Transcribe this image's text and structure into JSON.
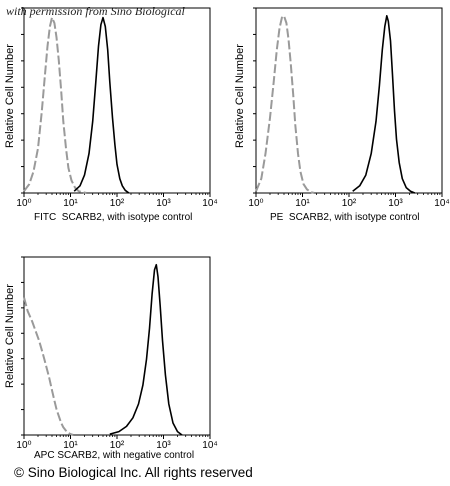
{
  "watermark": "with permission from Sino Biological",
  "footer": "© Sino Biological Inc. All rights reserved",
  "chart_data": [
    {
      "type": "line",
      "ylabel": "Relative Cell Number",
      "xcaption_marker": "FITC",
      "xcaption_text": "SCARB2,  with isotype control",
      "x_scale": "log",
      "xlim": [
        1,
        10000
      ],
      "xticks": [
        "10⁰",
        "10¹",
        "10²",
        "10³",
        "10⁴"
      ],
      "series": [
        {
          "style": "dashed",
          "color": "#9a9a9a",
          "x": [
            1,
            1.3,
            1.6,
            2.0,
            2.4,
            2.8,
            3.2,
            3.6,
            4.0,
            4.5,
            5.0,
            5.6,
            6.3,
            7.0,
            8.0,
            9.0,
            10.5,
            12.5,
            15,
            18,
            22
          ],
          "y": [
            0.01,
            0.05,
            0.12,
            0.25,
            0.45,
            0.65,
            0.82,
            0.93,
            0.98,
            0.95,
            0.87,
            0.74,
            0.57,
            0.4,
            0.25,
            0.14,
            0.07,
            0.03,
            0.01,
            0.005,
            0
          ]
        },
        {
          "style": "solid",
          "color": "#000000",
          "x": [
            12,
            16,
            20,
            25,
            30,
            35,
            40,
            45,
            50,
            56,
            63,
            70,
            80,
            90,
            100,
            115,
            130,
            150,
            180
          ],
          "y": [
            0.01,
            0.04,
            0.1,
            0.22,
            0.4,
            0.62,
            0.82,
            0.94,
            0.98,
            0.93,
            0.8,
            0.62,
            0.42,
            0.27,
            0.16,
            0.08,
            0.04,
            0.015,
            0
          ]
        }
      ]
    },
    {
      "type": "line",
      "ylabel": "Relative Cell Number",
      "xcaption_marker": "PE",
      "xcaption_text": "SCARB2,  with isotype control",
      "x_scale": "log",
      "xlim": [
        1,
        10000
      ],
      "xticks": [
        "10⁰",
        "10¹",
        "10²",
        "10³",
        "10⁴"
      ],
      "series": [
        {
          "style": "dashed",
          "color": "#9a9a9a",
          "x": [
            1,
            1.3,
            1.6,
            2.0,
            2.4,
            2.8,
            3.2,
            3.6,
            4.0,
            4.5,
            5.0,
            5.6,
            6.3,
            7.0,
            8.0,
            9.0,
            10.5,
            12.5,
            15,
            18
          ],
          "y": [
            0.01,
            0.08,
            0.22,
            0.42,
            0.62,
            0.8,
            0.92,
            0.98,
            0.99,
            0.95,
            0.86,
            0.72,
            0.55,
            0.38,
            0.22,
            0.12,
            0.05,
            0.02,
            0.005,
            0
          ]
        },
        {
          "style": "solid",
          "color": "#000000",
          "x": [
            120,
            170,
            230,
            300,
            380,
            450,
            520,
            590,
            650,
            700,
            780,
            860,
            950,
            1050,
            1200,
            1400,
            1700,
            2100,
            2600
          ],
          "y": [
            0.01,
            0.04,
            0.1,
            0.22,
            0.4,
            0.6,
            0.8,
            0.93,
            0.99,
            0.96,
            0.85,
            0.66,
            0.46,
            0.3,
            0.17,
            0.08,
            0.03,
            0.01,
            0
          ]
        }
      ]
    },
    {
      "type": "line",
      "ylabel": "Relative Cell Number",
      "xcaption_marker": "APC",
      "xcaption_text": "SCARB2, with negative control",
      "x_scale": "log",
      "xlim": [
        1,
        10000
      ],
      "xticks": [
        "10⁰",
        "10¹",
        "10²",
        "10³",
        "10⁴"
      ],
      "series": [
        {
          "style": "dashed",
          "color": "#9a9a9a",
          "x": [
            1,
            1.2,
            1.5,
            1.8,
            2.1,
            2.5,
            3.0,
            3.5,
            4.0,
            4.5,
            5.0,
            5.6,
            6.3,
            7.0,
            8.0,
            9.0,
            10,
            11.5
          ],
          "y": [
            0.8,
            0.72,
            0.66,
            0.6,
            0.55,
            0.48,
            0.4,
            0.33,
            0.26,
            0.2,
            0.15,
            0.11,
            0.07,
            0.045,
            0.025,
            0.012,
            0.005,
            0
          ]
        },
        {
          "style": "solid",
          "color": "#000000",
          "x": [
            70,
            110,
            160,
            220,
            290,
            360,
            430,
            500,
            570,
            640,
            700,
            760,
            850,
            950,
            1100,
            1300,
            1600,
            2000,
            2500
          ],
          "y": [
            0.005,
            0.02,
            0.05,
            0.1,
            0.18,
            0.29,
            0.44,
            0.62,
            0.82,
            0.96,
            0.99,
            0.92,
            0.75,
            0.55,
            0.35,
            0.18,
            0.07,
            0.02,
            0
          ]
        }
      ]
    }
  ]
}
